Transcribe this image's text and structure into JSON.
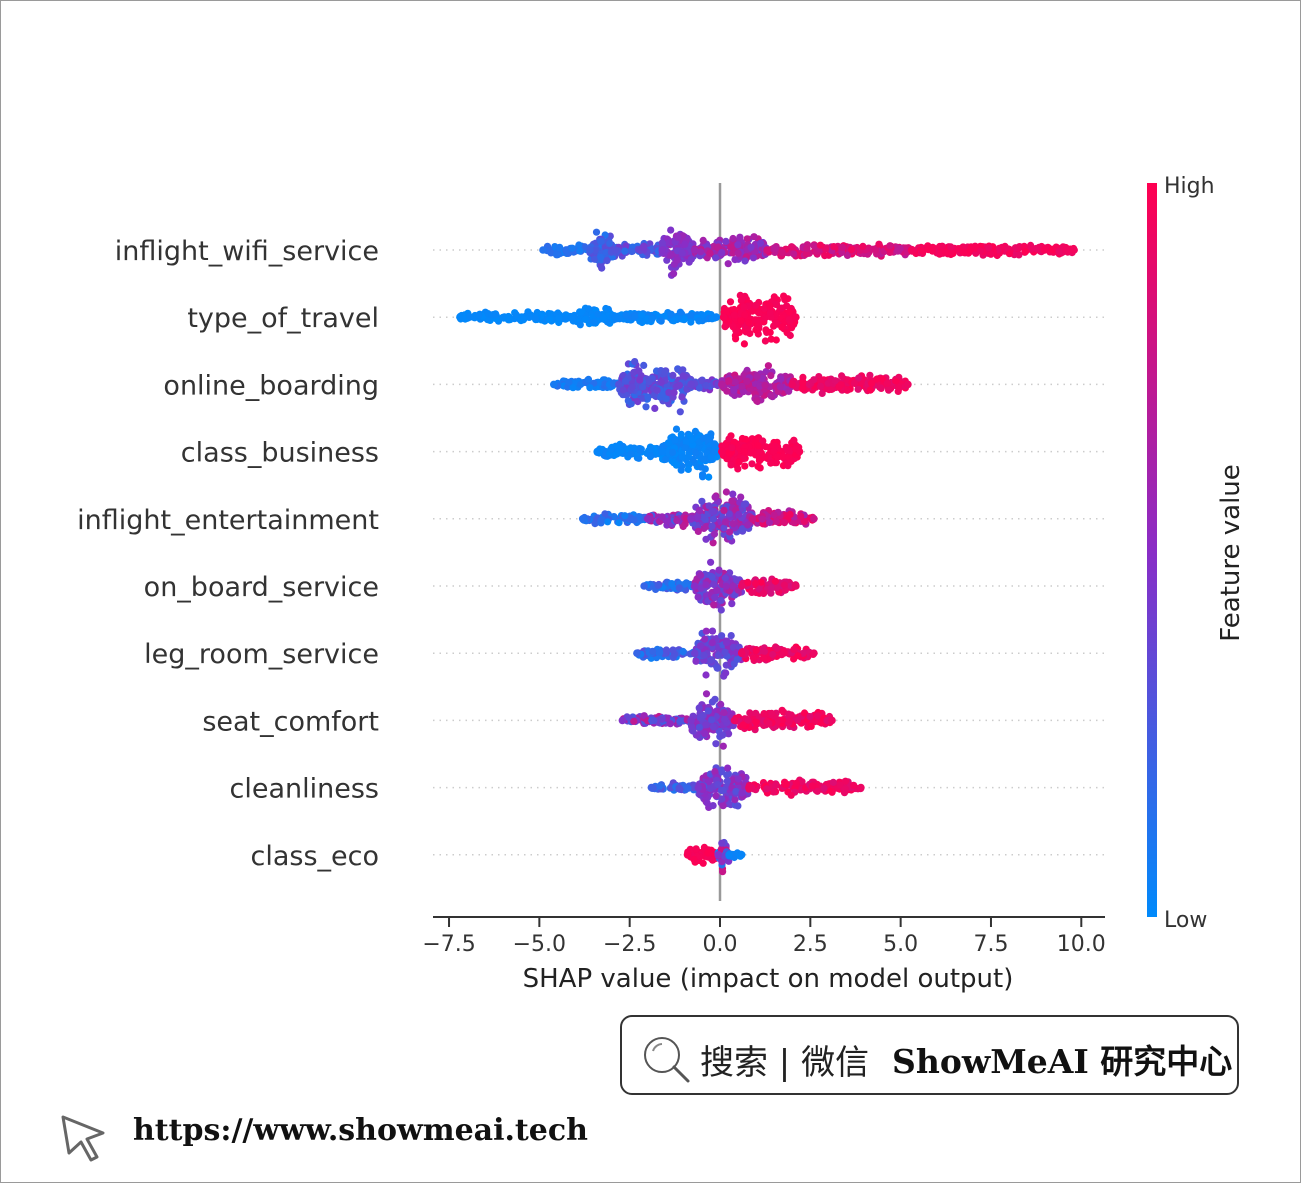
{
  "chart_data": {
    "type": "scatter",
    "subtype": "shap-beeswarm",
    "title": "",
    "xlabel": "SHAP value (impact on model output)",
    "ylabel": "",
    "xlim": [
      -7.5,
      10.5
    ],
    "xticks": [
      -7.5,
      -5.0,
      -2.5,
      0.0,
      2.5,
      5.0,
      7.5,
      10.0
    ],
    "xtick_labels": [
      "−7.5",
      "−5.0",
      "−2.5",
      "0.0",
      "2.5",
      "5.0",
      "7.5",
      "10.0"
    ],
    "zero_line": 0.0,
    "grid": "dotted horizontal guide per feature",
    "features": [
      {
        "name": "inflight_wifi_service",
        "min": -4.9,
        "max": 9.8,
        "clusters": [
          {
            "from": -4.9,
            "to": -3.6,
            "density": 0.25,
            "low": 0.05,
            "high": 0.2
          },
          {
            "from": -3.6,
            "to": -2.9,
            "density": 1.0,
            "low": 0.1,
            "high": 0.35
          },
          {
            "from": -2.9,
            "to": -1.6,
            "density": 0.35,
            "low": 0.15,
            "high": 0.45
          },
          {
            "from": -1.6,
            "to": -0.7,
            "density": 1.0,
            "low": 0.35,
            "high": 0.6
          },
          {
            "from": -0.7,
            "to": 1.3,
            "density": 0.55,
            "low": 0.4,
            "high": 0.75
          },
          {
            "from": 1.3,
            "to": 5.3,
            "density": 0.28,
            "low": 0.7,
            "high": 0.95
          },
          {
            "from": 5.3,
            "to": 9.8,
            "density": 0.22,
            "low": 0.9,
            "high": 1.0
          }
        ]
      },
      {
        "name": "type_of_travel",
        "min": -7.2,
        "max": 2.1,
        "clusters": [
          {
            "from": -7.2,
            "to": -4.1,
            "density": 0.22,
            "low": 0.0,
            "high": 0.03
          },
          {
            "from": -4.1,
            "to": -2.9,
            "density": 0.48,
            "low": 0.0,
            "high": 0.04
          },
          {
            "from": -2.9,
            "to": -0.1,
            "density": 0.25,
            "low": 0.0,
            "high": 0.06
          },
          {
            "from": 0.1,
            "to": 2.1,
            "density": 1.0,
            "low": 0.95,
            "high": 1.0
          }
        ]
      },
      {
        "name": "online_boarding",
        "min": -4.6,
        "max": 5.2,
        "clusters": [
          {
            "from": -4.6,
            "to": -2.8,
            "density": 0.22,
            "low": 0.02,
            "high": 0.15
          },
          {
            "from": -2.8,
            "to": -0.8,
            "density": 1.0,
            "low": 0.15,
            "high": 0.45
          },
          {
            "from": -0.8,
            "to": -0.05,
            "density": 0.25,
            "low": 0.25,
            "high": 0.5
          },
          {
            "from": 0.05,
            "to": 2.0,
            "density": 0.75,
            "low": 0.55,
            "high": 0.8
          },
          {
            "from": 2.0,
            "to": 5.2,
            "density": 0.4,
            "low": 0.85,
            "high": 1.0
          }
        ]
      },
      {
        "name": "class_business",
        "min": -3.4,
        "max": 2.2,
        "clusters": [
          {
            "from": -3.4,
            "to": -1.6,
            "density": 0.3,
            "low": 0.0,
            "high": 0.05
          },
          {
            "from": -1.6,
            "to": -0.05,
            "density": 1.0,
            "low": 0.0,
            "high": 0.06
          },
          {
            "from": 0.05,
            "to": 2.2,
            "density": 0.8,
            "low": 0.95,
            "high": 1.0
          }
        ]
      },
      {
        "name": "inflight_entertainment",
        "min": -3.8,
        "max": 2.6,
        "clusters": [
          {
            "from": -3.8,
            "to": -2.0,
            "density": 0.22,
            "low": 0.02,
            "high": 0.25
          },
          {
            "from": -2.0,
            "to": -0.8,
            "density": 0.35,
            "low": 0.25,
            "high": 0.8
          },
          {
            "from": -0.8,
            "to": 0.9,
            "density": 1.0,
            "low": 0.3,
            "high": 0.7
          },
          {
            "from": 0.9,
            "to": 2.6,
            "density": 0.35,
            "low": 0.6,
            "high": 0.95
          }
        ]
      },
      {
        "name": "on_board_service",
        "min": -2.1,
        "max": 2.1,
        "clusters": [
          {
            "from": -2.1,
            "to": -0.7,
            "density": 0.25,
            "low": 0.05,
            "high": 0.35
          },
          {
            "from": -0.7,
            "to": 0.6,
            "density": 1.0,
            "low": 0.3,
            "high": 0.7
          },
          {
            "from": 0.6,
            "to": 2.1,
            "density": 0.35,
            "low": 0.8,
            "high": 1.0
          }
        ]
      },
      {
        "name": "leg_room_service",
        "min": -2.3,
        "max": 2.6,
        "clusters": [
          {
            "from": -2.3,
            "to": -0.7,
            "density": 0.22,
            "low": 0.05,
            "high": 0.35
          },
          {
            "from": -0.7,
            "to": 0.6,
            "density": 1.0,
            "low": 0.25,
            "high": 0.55
          },
          {
            "from": 0.6,
            "to": 2.6,
            "density": 0.32,
            "low": 0.85,
            "high": 1.0
          }
        ]
      },
      {
        "name": "seat_comfort",
        "min": -2.7,
        "max": 3.1,
        "clusters": [
          {
            "from": -2.7,
            "to": -0.8,
            "density": 0.22,
            "low": 0.2,
            "high": 0.75
          },
          {
            "from": -0.8,
            "to": 0.4,
            "density": 1.0,
            "low": 0.3,
            "high": 0.6
          },
          {
            "from": 0.4,
            "to": 3.1,
            "density": 0.42,
            "low": 0.85,
            "high": 1.0
          }
        ]
      },
      {
        "name": "cleanliness",
        "min": -1.9,
        "max": 3.9,
        "clusters": [
          {
            "from": -1.9,
            "to": -0.6,
            "density": 0.22,
            "low": 0.1,
            "high": 0.35
          },
          {
            "from": -0.6,
            "to": 0.8,
            "density": 1.0,
            "low": 0.3,
            "high": 0.6
          },
          {
            "from": 0.8,
            "to": 3.9,
            "density": 0.32,
            "low": 0.85,
            "high": 1.0
          }
        ]
      },
      {
        "name": "class_eco",
        "min": -0.9,
        "max": 0.6,
        "clusters": [
          {
            "from": -0.9,
            "to": -0.05,
            "density": 0.45,
            "low": 0.95,
            "high": 1.0
          },
          {
            "from": -0.05,
            "to": 0.25,
            "density": 1.0,
            "low": 0.05,
            "high": 0.9
          },
          {
            "from": 0.25,
            "to": 0.6,
            "density": 0.3,
            "low": 0.0,
            "high": 0.05
          }
        ]
      }
    ],
    "colorbar": {
      "label": "Feature value",
      "high_label": "High",
      "low_label": "Low",
      "low_color": "#008afb",
      "mid_color": "#8a2dc6",
      "high_color": "#ff0051"
    }
  },
  "watermark": {
    "search_text": "搜索 | 微信",
    "brand_text": "ShowMeAI 研究中心",
    "url": "https://www.showmeai.tech"
  },
  "colors": {
    "axis": "#333333",
    "zero_line": "#999999",
    "guide": "#cccccc"
  }
}
